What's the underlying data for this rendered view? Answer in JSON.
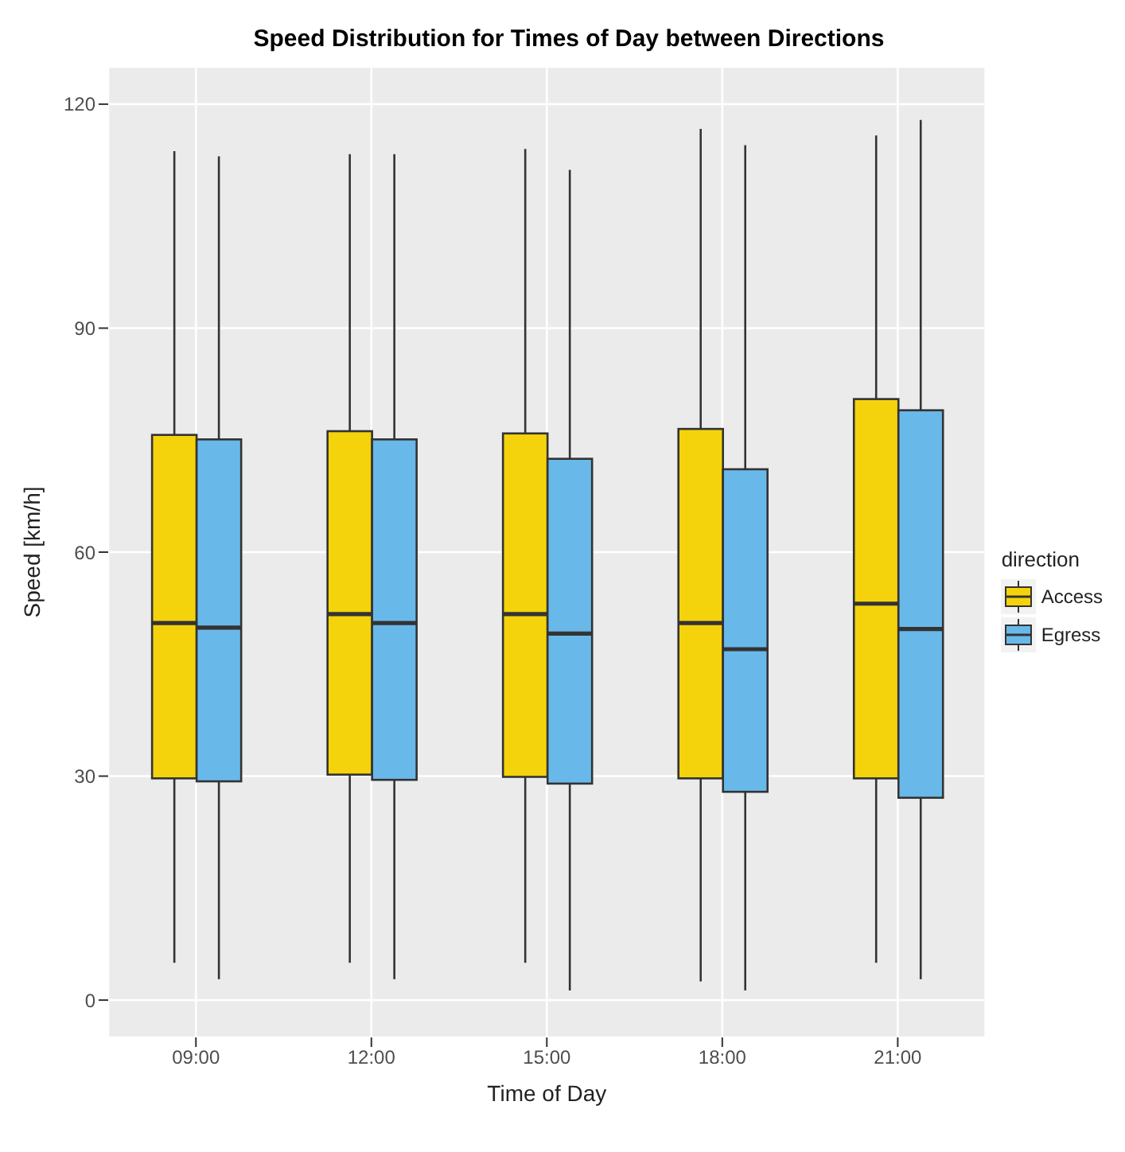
{
  "chart_data": {
    "type": "box",
    "title": "Speed Distribution for Times of Day between Directions",
    "xlabel": "Time of Day",
    "ylabel": "Speed [km/h]",
    "legend_title": "direction",
    "legend": "right",
    "grid": true,
    "categories": [
      "09:00",
      "12:00",
      "15:00",
      "18:00",
      "21:00"
    ],
    "ylim": [
      -5,
      125
    ],
    "yticks": [
      0,
      30,
      60,
      90,
      120
    ],
    "series": [
      {
        "name": "Access",
        "color": "#f5d30c",
        "boxes": [
          {
            "low": 5,
            "q1": 29.7,
            "median": 50.5,
            "q3": 75.7,
            "high": 113.7
          },
          {
            "low": 5,
            "q1": 30.2,
            "median": 51.7,
            "q3": 76.2,
            "high": 113.3
          },
          {
            "low": 5,
            "q1": 29.9,
            "median": 51.7,
            "q3": 75.9,
            "high": 114
          },
          {
            "low": 2.5,
            "q1": 29.7,
            "median": 50.5,
            "q3": 76.5,
            "high": 116.7
          },
          {
            "low": 5,
            "q1": 29.7,
            "median": 53.1,
            "q3": 80.5,
            "high": 115.8
          }
        ]
      },
      {
        "name": "Egress",
        "color": "#69b8ea",
        "boxes": [
          {
            "low": 2.8,
            "q1": 29.3,
            "median": 49.9,
            "q3": 75.1,
            "high": 113
          },
          {
            "low": 2.8,
            "q1": 29.5,
            "median": 50.5,
            "q3": 75.1,
            "high": 113.3
          },
          {
            "low": 1.3,
            "q1": 29,
            "median": 49.1,
            "q3": 72.5,
            "high": 111.2
          },
          {
            "low": 1.3,
            "q1": 27.9,
            "median": 47,
            "q3": 71.1,
            "high": 114.5
          },
          {
            "low": 2.8,
            "q1": 27.1,
            "median": 49.7,
            "q3": 79,
            "high": 117.9
          }
        ]
      }
    ]
  }
}
